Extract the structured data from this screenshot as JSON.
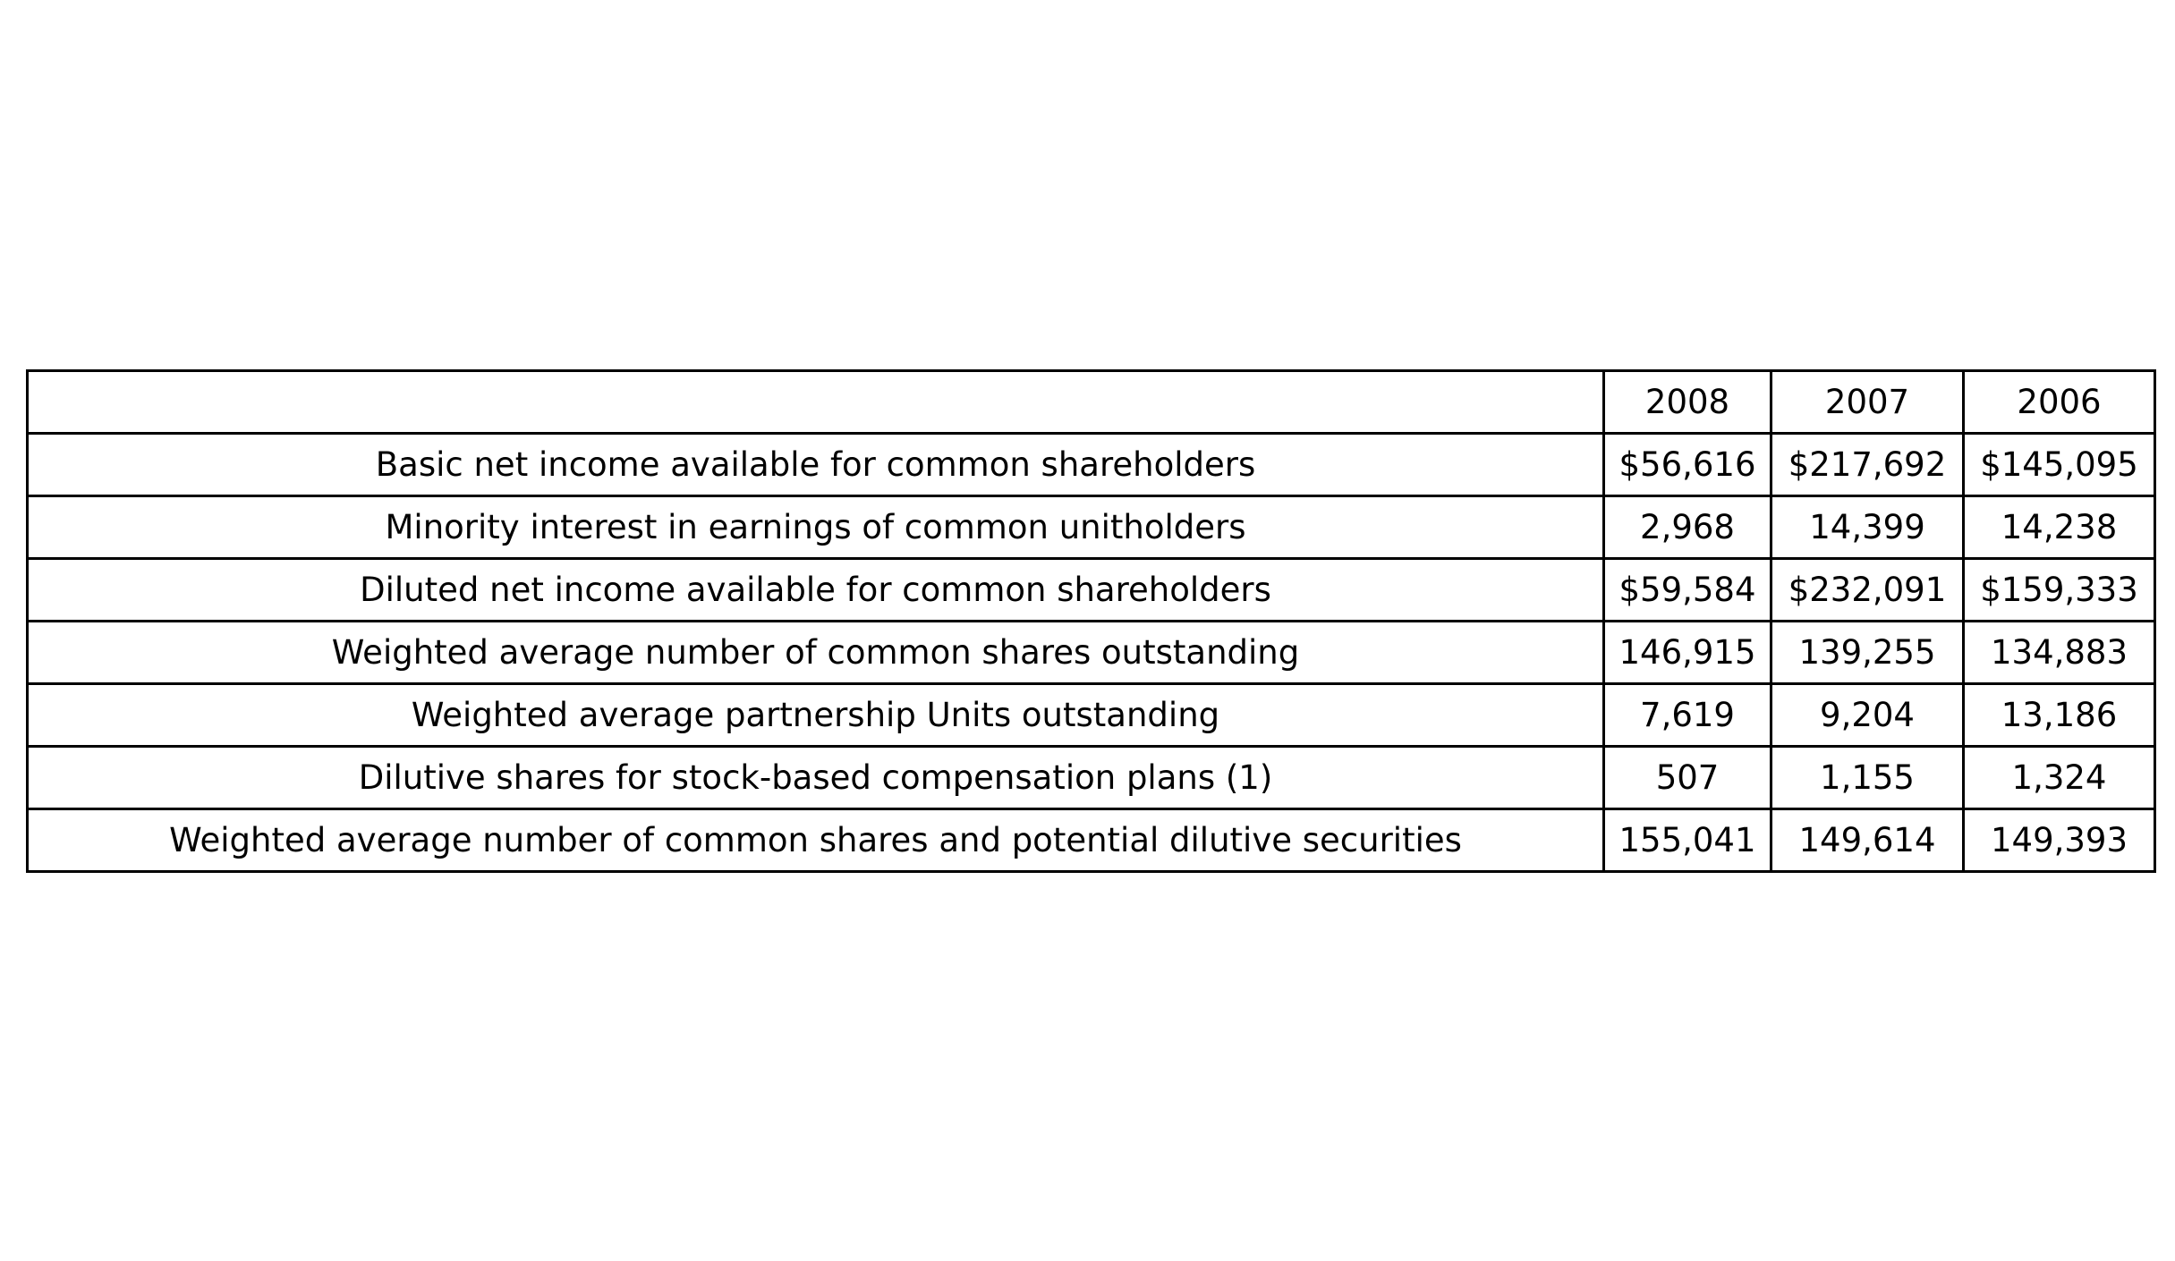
{
  "table": {
    "header": {
      "label": "",
      "years": [
        "2008",
        "2007",
        "2006"
      ]
    },
    "rows": [
      {
        "label": "Basic net income available for common shareholders",
        "values": [
          "$56,616",
          "$217,692",
          "$145,095"
        ]
      },
      {
        "label": "Minority interest in earnings of common unitholders",
        "values": [
          "2,968",
          "14,399",
          "14,238"
        ]
      },
      {
        "label": "Diluted net income available for common shareholders",
        "values": [
          "$59,584",
          "$232,091",
          "$159,333"
        ]
      },
      {
        "label": "Weighted average number of common shares outstanding",
        "values": [
          "146,915",
          "139,255",
          "134,883"
        ]
      },
      {
        "label": "Weighted average partnership Units outstanding",
        "values": [
          "7,619",
          "9,204",
          "13,186"
        ]
      },
      {
        "label": "Dilutive shares for stock-based compensation plans (1)",
        "values": [
          "507",
          "1,155",
          "1,324"
        ]
      },
      {
        "label": "Weighted average number of common shares and potential dilutive securities",
        "values": [
          "155,041",
          "149,614",
          "149,393"
        ]
      }
    ]
  }
}
